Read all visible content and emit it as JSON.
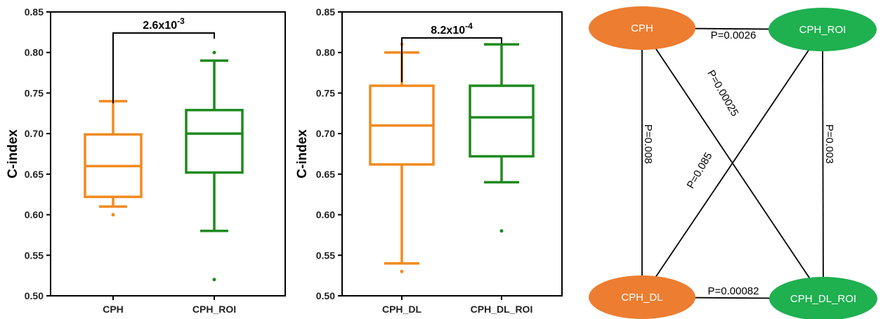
{
  "chart_data": [
    {
      "type": "box",
      "ylabel": "C-index",
      "ylim": [
        0.5,
        0.85
      ],
      "yticks": [
        "0.50",
        "0.55",
        "0.60",
        "0.65",
        "0.70",
        "0.75",
        "0.80",
        "0.85"
      ],
      "categories": [
        "CPH",
        "CPH_ROI"
      ],
      "boxes": [
        {
          "name": "CPH",
          "color": "#F28A1E",
          "whisker_low": 0.61,
          "q1": 0.622,
          "median": 0.66,
          "q3": 0.699,
          "whisker_high": 0.74,
          "outliers": [
            0.6
          ]
        },
        {
          "name": "CPH_ROI",
          "color": "#1E8A1E",
          "whisker_low": 0.58,
          "q1": 0.652,
          "median": 0.7,
          "q3": 0.729,
          "whisker_high": 0.79,
          "outliers": [
            0.52,
            0.8
          ]
        }
      ],
      "annotation": {
        "base": "2.6x10",
        "exp": "-3"
      }
    },
    {
      "type": "box",
      "ylabel": "C-index",
      "ylim": [
        0.5,
        0.85
      ],
      "yticks": [
        "0.50",
        "0.55",
        "0.60",
        "0.65",
        "0.70",
        "0.75",
        "0.80",
        "0.85"
      ],
      "categories": [
        "CPH_DL",
        "CPH_DL_ROI"
      ],
      "boxes": [
        {
          "name": "CPH_DL",
          "color": "#F28A1E",
          "whisker_low": 0.54,
          "q1": 0.662,
          "median": 0.71,
          "q3": 0.759,
          "whisker_high": 0.8,
          "outliers": [
            0.53,
            0.81
          ]
        },
        {
          "name": "CPH_DL_ROI",
          "color": "#1E8A1E",
          "whisker_low": 0.64,
          "q1": 0.672,
          "median": 0.72,
          "q3": 0.759,
          "whisker_high": 0.81,
          "outliers": [
            0.58
          ]
        }
      ],
      "annotation": {
        "base": "8.2x10",
        "exp": "-4"
      }
    },
    {
      "type": "network",
      "nodes": [
        {
          "id": "CPH",
          "label": "CPH",
          "color": "#ED7D31"
        },
        {
          "id": "CPH_ROI",
          "label": "CPH_ROI",
          "color": "#1FB050"
        },
        {
          "id": "CPH_DL",
          "label": "CPH_DL",
          "color": "#ED7D31"
        },
        {
          "id": "CPH_DL_ROI",
          "label": "CPH_DL_ROI",
          "color": "#1FB050"
        }
      ],
      "edges": [
        {
          "from": "CPH",
          "to": "CPH_ROI",
          "label": "P=0.0026"
        },
        {
          "from": "CPH",
          "to": "CPH_DL",
          "label": "P=0.008"
        },
        {
          "from": "CPH",
          "to": "CPH_DL_ROI",
          "label": "P=0.00025"
        },
        {
          "from": "CPH_ROI",
          "to": "CPH_DL",
          "label": "P=0.085"
        },
        {
          "from": "CPH_ROI",
          "to": "CPH_DL_ROI",
          "label": "P=0.003"
        },
        {
          "from": "CPH_DL",
          "to": "CPH_DL_ROI",
          "label": "P=0.00082"
        }
      ]
    }
  ]
}
